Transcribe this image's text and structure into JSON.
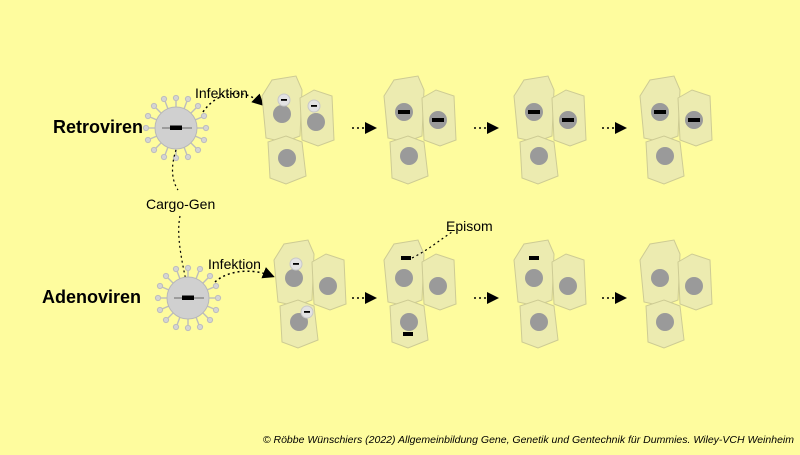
{
  "labels": {
    "retro": "Retroviren",
    "adeno": "Adenoviren",
    "infektion_retro": "Infektion",
    "infektion_adeno": "Infektion",
    "cargo": "Cargo-Gen",
    "episom": "Episom",
    "copyright": "© Röbbe Wünschiers (2022) Allgemeinbildung Gene, Genetik und Gentechnik für Dummies. Wiley-VCH Weinheim"
  },
  "colors": {
    "background": "#fefc9e",
    "cell_fill": "#ecebb0",
    "cell_stroke": "#cdcb94",
    "nucleus": "#9a9a9a",
    "virus": "#d0d0d0",
    "gene": "#000000"
  }
}
